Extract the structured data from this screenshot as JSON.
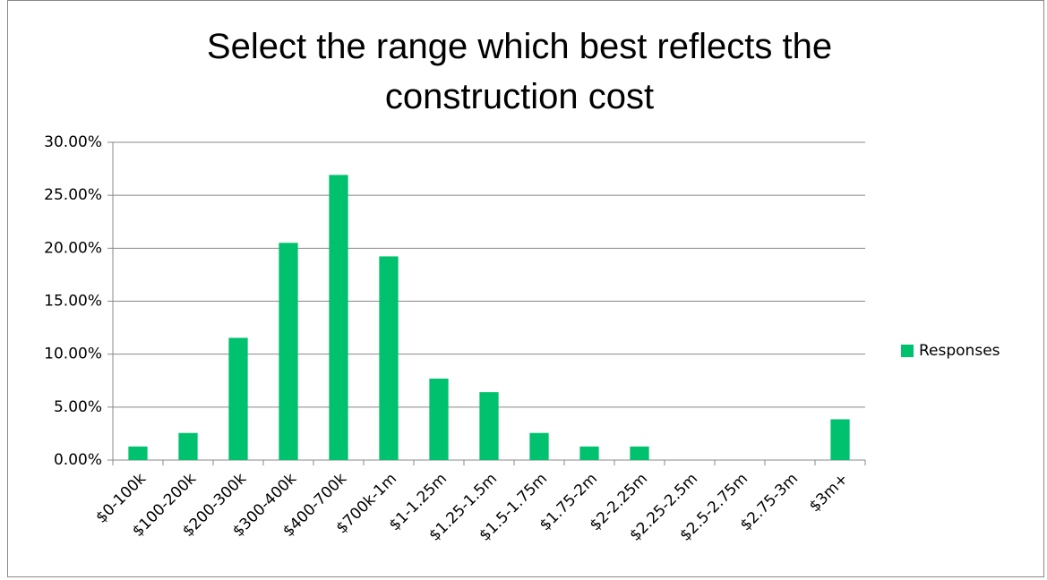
{
  "chart_data": {
    "type": "bar",
    "title": "Select the range which best reflects the construction cost",
    "categories": [
      "$0-100k",
      "$100-200k",
      "$200-300k",
      "$300-400k",
      "$400-700k",
      "$700k-1m",
      "$1-1.25m",
      "$1.25-1.5m",
      "$1.5-1.75m",
      "$1.75-2m",
      "$2-2.25m",
      "$2.25-2.5m",
      "$2.5-2.75m",
      "$2.75-3m",
      "$3m+"
    ],
    "series": [
      {
        "name": "Responses",
        "color": "#00c16e",
        "values": [
          1.28,
          2.56,
          11.54,
          20.51,
          26.92,
          19.23,
          7.69,
          6.41,
          2.56,
          1.28,
          1.28,
          0,
          0,
          0,
          3.85
        ]
      }
    ],
    "ylim": [
      0,
      30
    ],
    "yticks": [
      {
        "value": 0,
        "label": "0.00%"
      },
      {
        "value": 5,
        "label": "5.00%"
      },
      {
        "value": 10,
        "label": "10.00%"
      },
      {
        "value": 15,
        "label": "15.00%"
      },
      {
        "value": 20,
        "label": "20.00%"
      },
      {
        "value": 25,
        "label": "25.00%"
      },
      {
        "value": 30,
        "label": "30.00%"
      }
    ],
    "grid": true,
    "legend": "right"
  }
}
